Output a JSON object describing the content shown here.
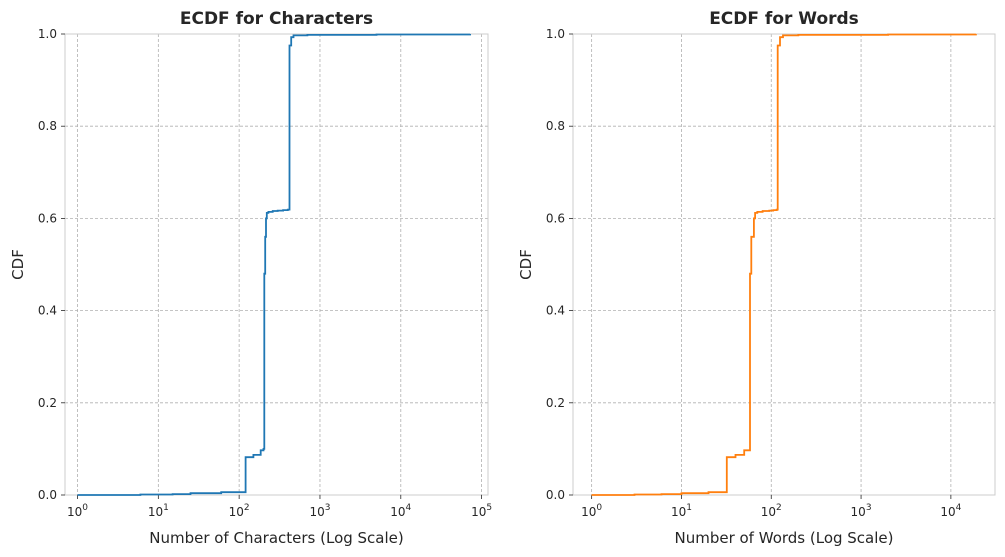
{
  "chart_data": [
    {
      "type": "line",
      "title": "ECDF for Characters",
      "xlabel": "Number of Characters (Log Scale)",
      "ylabel": "CDF",
      "xscale": "log",
      "xlim": [
        0.7,
        120000
      ],
      "ylim": [
        0,
        1
      ],
      "xticks": [
        1,
        10,
        100,
        1000,
        10000,
        100000
      ],
      "xtick_labels": [
        {
          "base": "10",
          "exp": "0"
        },
        {
          "base": "10",
          "exp": "1"
        },
        {
          "base": "10",
          "exp": "2"
        },
        {
          "base": "10",
          "exp": "3"
        },
        {
          "base": "10",
          "exp": "4"
        },
        {
          "base": "10",
          "exp": "5"
        }
      ],
      "yticks": [
        0,
        0.2,
        0.4,
        0.6,
        0.8,
        1.0
      ],
      "ytick_labels": [
        "0.0",
        "0.2",
        "0.4",
        "0.6",
        "0.8",
        "1.0"
      ],
      "grid": true,
      "color": "#1f77b4",
      "series": [
        {
          "x": [
            1,
            6,
            15,
            25,
            60,
            120,
            120,
            150,
            185,
            185,
            200,
            205,
            205,
            210,
            215,
            220,
            230,
            260,
            300,
            350,
            400,
            420,
            420,
            440,
            440,
            470,
            470,
            700,
            5000,
            72000
          ],
          "y": [
            0.0,
            0.001,
            0.002,
            0.004,
            0.006,
            0.008,
            0.082,
            0.087,
            0.088,
            0.097,
            0.1,
            0.1,
            0.48,
            0.56,
            0.6,
            0.612,
            0.614,
            0.616,
            0.617,
            0.618,
            0.619,
            0.62,
            0.975,
            0.976,
            0.993,
            0.995,
            0.997,
            0.998,
            0.999,
            1.0
          ]
        }
      ]
    },
    {
      "type": "line",
      "title": "ECDF for Words",
      "xlabel": "Number of Words (Log Scale)",
      "ylabel": "CDF",
      "xscale": "log",
      "xlim": [
        0.62,
        31000
      ],
      "ylim": [
        0,
        1
      ],
      "xticks": [
        1,
        10,
        100,
        1000,
        10000
      ],
      "xtick_labels": [
        {
          "base": "10",
          "exp": "0"
        },
        {
          "base": "10",
          "exp": "1"
        },
        {
          "base": "10",
          "exp": "2"
        },
        {
          "base": "10",
          "exp": "3"
        },
        {
          "base": "10",
          "exp": "4"
        }
      ],
      "yticks": [
        0,
        0.2,
        0.4,
        0.6,
        0.8,
        1.0
      ],
      "ytick_labels": [
        "0.0",
        "0.2",
        "0.4",
        "0.6",
        "0.8",
        "1.0"
      ],
      "grid": true,
      "color": "#ff7f0e",
      "series": [
        {
          "x": [
            1,
            3,
            6,
            10,
            20,
            32,
            32,
            40,
            50,
            50,
            58,
            58,
            60,
            60,
            64,
            66,
            70,
            80,
            95,
            105,
            115,
            118,
            118,
            125,
            125,
            135,
            135,
            200,
            2000,
            19000
          ],
          "y": [
            0.0,
            0.001,
            0.002,
            0.004,
            0.006,
            0.008,
            0.082,
            0.087,
            0.088,
            0.097,
            0.1,
            0.48,
            0.48,
            0.56,
            0.6,
            0.612,
            0.614,
            0.616,
            0.617,
            0.618,
            0.619,
            0.62,
            0.975,
            0.976,
            0.993,
            0.995,
            0.997,
            0.998,
            0.999,
            1.0
          ]
        }
      ]
    }
  ]
}
